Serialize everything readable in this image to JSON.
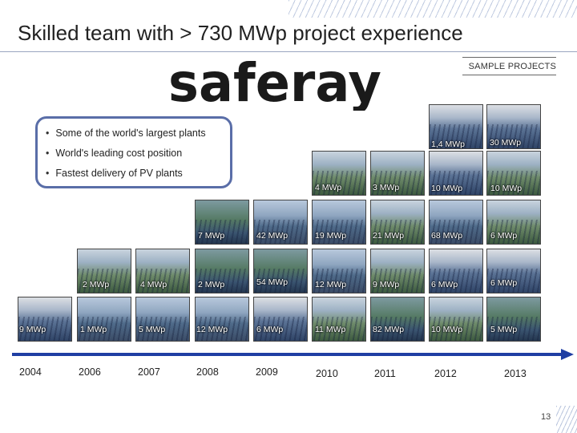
{
  "title": "Skilled team with > 730 MWp project experience",
  "sample_label": "SAMPLE PROJECTS",
  "logo_text": "saferay",
  "bullets": [
    "Some of the world's largest plants",
    "World's leading cost position",
    "Fastest delivery of PV plants"
  ],
  "years": [
    "2004",
    "2006",
    "2007",
    "2008",
    "2009",
    "2010",
    "2011",
    "2012",
    "2013"
  ],
  "projects": {
    "r1": [
      "1,4 MWp",
      "30 MWp"
    ],
    "r2": [
      "4 MWp",
      "3 MWp",
      "10 MWp",
      "10 MWp"
    ],
    "r3": [
      "7 MWp",
      "42 MWp",
      "19 MWp",
      "21 MWp",
      "68 MWp",
      "6 MWp"
    ],
    "r4": [
      "2 MWp",
      "4 MWp",
      "2 MWp",
      "54 MWp",
      "12 MWp",
      "9 MWp",
      "6 MWp",
      "6 MWp"
    ],
    "r5": [
      "9 MWp",
      "1 MWp",
      "5 MWp",
      "12 MWp",
      "6 MWp",
      "11 MWp",
      "82 MWp",
      "10 MWp",
      "5 MWp"
    ]
  },
  "page_number": "13",
  "colors": {
    "accent": "#1f3ea3",
    "box_border": "#5a6ea8"
  }
}
